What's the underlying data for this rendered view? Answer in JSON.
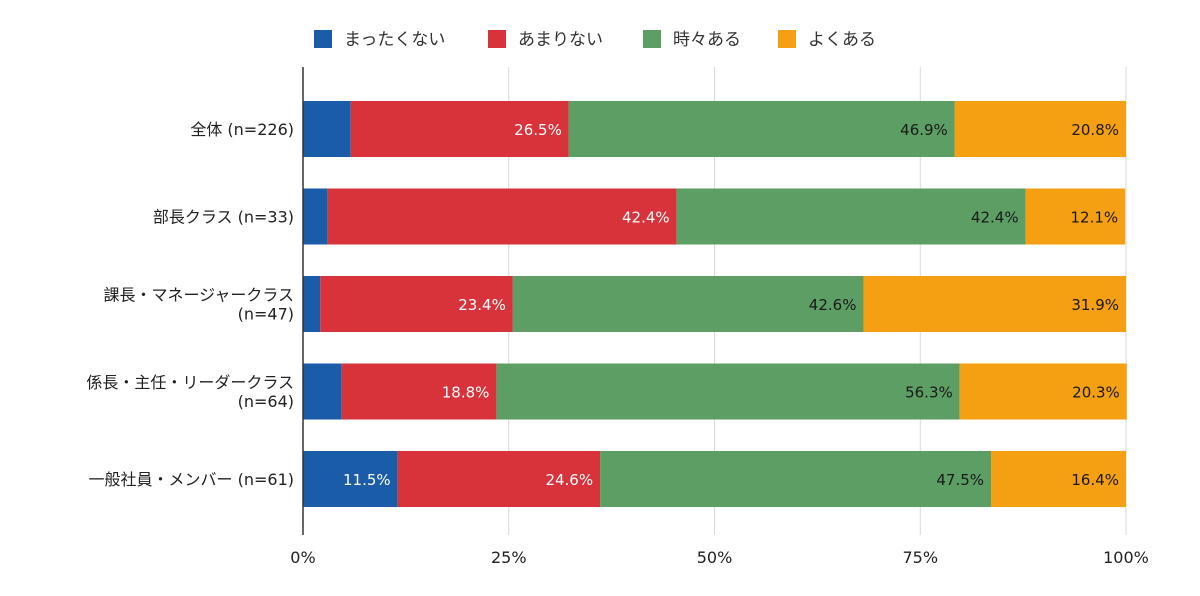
{
  "chart_data": {
    "type": "bar",
    "orientation": "horizontal",
    "stacked": "percent",
    "legend_position": "top",
    "grid": true,
    "xlim": [
      0,
      100
    ],
    "x_ticks": [
      "0%",
      "25%",
      "50%",
      "75%",
      "100%"
    ],
    "x_tick_values": [
      0,
      25,
      50,
      75,
      100
    ],
    "categories": [
      [
        "全体 (n=226)"
      ],
      [
        "部長クラス (n=33)"
      ],
      [
        "課長・マネージャークラス",
        "(n=47)"
      ],
      [
        "係長・主任・リーダークラス",
        "(n=64)"
      ],
      [
        "一般社員・メンバー (n=61)"
      ]
    ],
    "series": [
      {
        "name": "まったくない",
        "color": "#1a5ca8",
        "values": [
          5.8,
          3.0,
          2.1,
          4.7,
          11.5
        ],
        "labels": [
          "5.8%",
          "3.0%",
          "2.1%",
          "4.7%",
          "11.5%"
        ]
      },
      {
        "name": "あまりない",
        "color": "#d8333b",
        "values": [
          26.5,
          42.4,
          23.4,
          18.8,
          24.6
        ],
        "labels": [
          "26.5%",
          "42.4%",
          "23.4%",
          "18.8%",
          "24.6%"
        ]
      },
      {
        "name": "時々ある",
        "color": "#5c9e63",
        "values": [
          46.9,
          42.4,
          42.6,
          56.3,
          47.5
        ],
        "labels": [
          "46.9%",
          "42.4%",
          "42.6%",
          "56.3%",
          "47.5%"
        ]
      },
      {
        "name": "よくある",
        "color": "#f59f12",
        "values": [
          20.8,
          12.1,
          31.9,
          20.3,
          16.4
        ],
        "labels": [
          "20.8%",
          "12.1%",
          "31.9%",
          "20.3%",
          "16.4%"
        ]
      }
    ]
  }
}
